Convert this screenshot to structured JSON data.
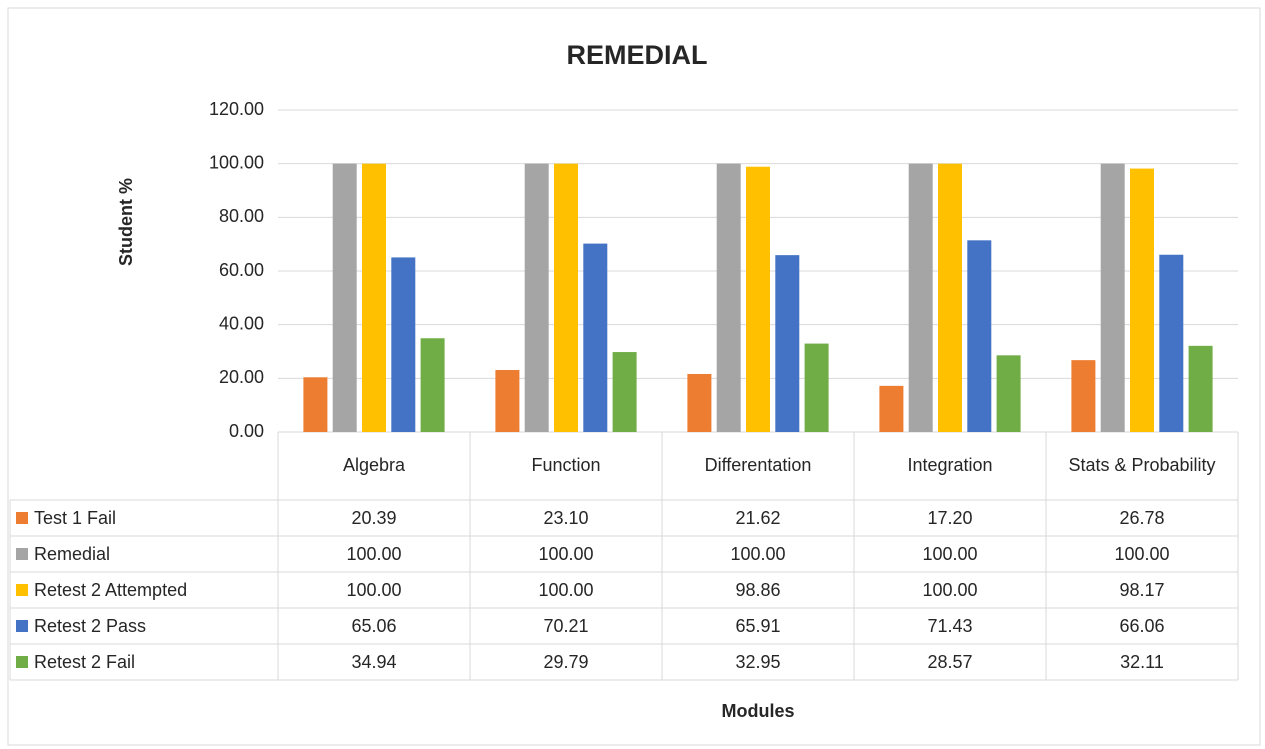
{
  "chart_data": {
    "type": "bar",
    "title": "REMEDIAL",
    "y_label": "Student %",
    "x_label": "Modules",
    "categories": [
      "Algebra",
      "Function",
      "Differentation",
      "Integration",
      "Stats & Probability"
    ],
    "series": [
      {
        "name": "Test 1 Fail",
        "color": "#ED7D31",
        "values": [
          20.39,
          23.1,
          21.62,
          17.2,
          26.78
        ],
        "value_labels": [
          "20.39",
          "23.10",
          "21.62",
          "17.20",
          "26.78"
        ]
      },
      {
        "name": "Remedial",
        "color": "#A5A5A5",
        "values": [
          100,
          100,
          100,
          100,
          100
        ],
        "value_labels": [
          "100.00",
          "100.00",
          "100.00",
          "100.00",
          "100.00"
        ]
      },
      {
        "name": "Retest 2 Attempted",
        "color": "#FFC000",
        "values": [
          100,
          100,
          98.86,
          100,
          98.17
        ],
        "value_labels": [
          "100.00",
          "100.00",
          "98.86",
          "100.00",
          "98.17"
        ]
      },
      {
        "name": "Retest 2 Pass",
        "color": "#4472C4",
        "values": [
          65.06,
          70.21,
          65.91,
          71.43,
          66.06
        ],
        "value_labels": [
          "65.06",
          "70.21",
          "65.91",
          "71.43",
          "66.06"
        ]
      },
      {
        "name": "Retest 2 Fail",
        "color": "#70AD47",
        "values": [
          34.94,
          29.79,
          32.95,
          28.57,
          32.11
        ],
        "value_labels": [
          "34.94",
          "29.79",
          "32.95",
          "28.57",
          "32.11"
        ]
      }
    ],
    "ylim": [
      0,
      120
    ],
    "yticks": [
      {
        "value": 0,
        "label": "0.00"
      },
      {
        "value": 20,
        "label": "20.00"
      },
      {
        "value": 40,
        "label": "40.00"
      },
      {
        "value": 60,
        "label": "60.00"
      },
      {
        "value": 80,
        "label": "80.00"
      },
      {
        "value": 100,
        "label": "100.00"
      },
      {
        "value": 120,
        "label": "120.00"
      }
    ],
    "grid": true
  }
}
